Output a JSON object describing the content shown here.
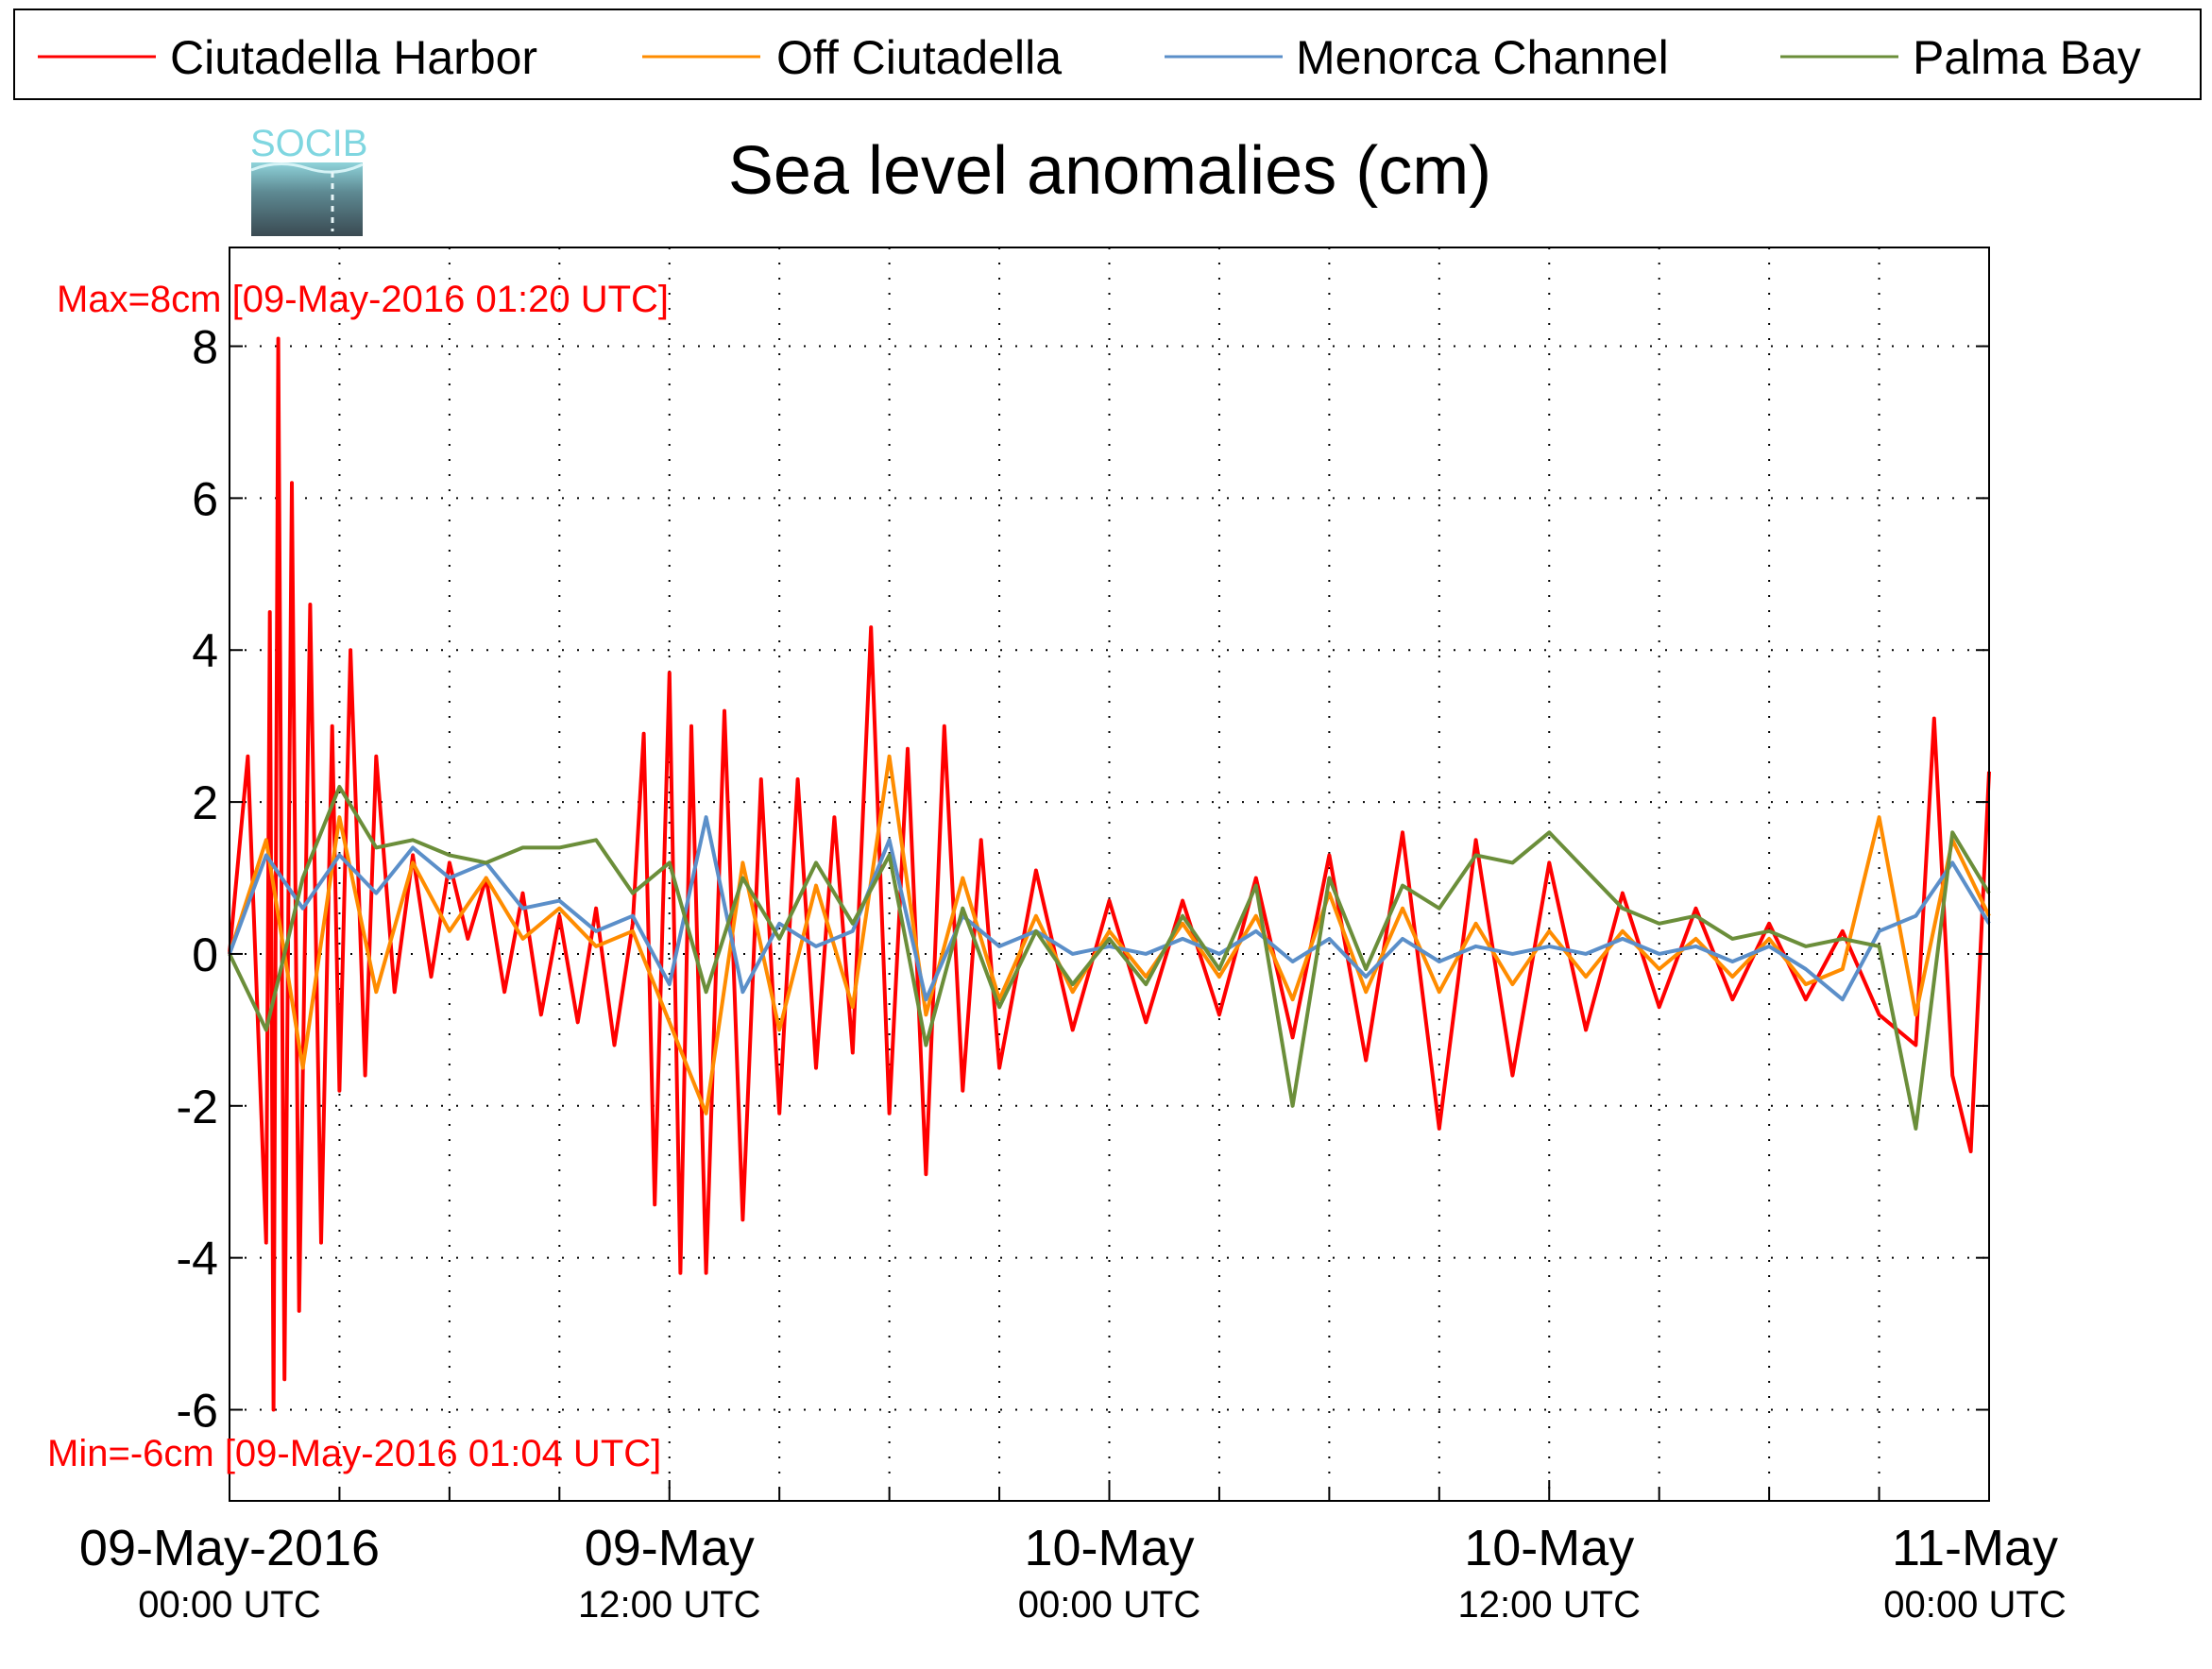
{
  "chart_data": {
    "type": "line",
    "title": "Sea level anomalies (cm)",
    "xlabel": "",
    "ylabel": "",
    "ylim": [
      -7.2,
      9.3
    ],
    "yticks": [
      8,
      6,
      4,
      2,
      0,
      -2,
      -4,
      -6
    ],
    "ytick_labels": [
      "8",
      "6",
      "4",
      "2",
      "0",
      "-2",
      "-4",
      "-6"
    ],
    "x_range_hours": [
      0,
      48
    ],
    "x_ticks": [
      {
        "date": "09-May-2016",
        "time": "00:00 UTC"
      },
      {
        "date": "09-May",
        "time": "12:00 UTC"
      },
      {
        "date": "10-May",
        "time": "00:00 UTC"
      },
      {
        "date": "10-May",
        "time": "12:00 UTC"
      },
      {
        "date": "11-May",
        "time": "00:00 UTC"
      }
    ],
    "grid": true,
    "legend_position": "top",
    "annotations": {
      "max": "Max=8cm [09-May-2016 01:20 UTC]",
      "min": "Min=-6cm [09-May-2016 01:04 UTC]"
    },
    "series": [
      {
        "name": "Ciutadella Harbor",
        "color": "#ff0000",
        "x": [
          0,
          0.5,
          1,
          1.1,
          1.2,
          1.33,
          1.5,
          1.7,
          1.9,
          2.2,
          2.5,
          2.8,
          3,
          3.3,
          3.7,
          4,
          4.5,
          5,
          5.5,
          6,
          6.5,
          7,
          7.5,
          8,
          8.5,
          9,
          9.5,
          10,
          10.5,
          11,
          11.3,
          11.6,
          12,
          12.3,
          12.6,
          13,
          13.5,
          14,
          14.5,
          15,
          15.5,
          16,
          16.5,
          17,
          17.5,
          18,
          18.5,
          19,
          19.5,
          20,
          20.5,
          21,
          22,
          23,
          24,
          25,
          26,
          27,
          28,
          29,
          30,
          31,
          32,
          33,
          34,
          35,
          36,
          37,
          38,
          39,
          40,
          41,
          42,
          43,
          44,
          45,
          46,
          46.5,
          47,
          47.5,
          48
        ],
        "y": [
          0,
          2.6,
          -3.8,
          4.5,
          -6,
          8.1,
          -5.6,
          6.2,
          -4.7,
          4.6,
          -3.8,
          3,
          -1.8,
          4,
          -1.6,
          2.6,
          -0.5,
          1.3,
          -0.3,
          1.2,
          0.2,
          1,
          -0.5,
          0.8,
          -0.8,
          0.5,
          -0.9,
          0.6,
          -1.2,
          0.4,
          2.9,
          -3.3,
          3.7,
          -4.2,
          3,
          -4.2,
          3.2,
          -3.5,
          2.3,
          -2.1,
          2.3,
          -1.5,
          1.8,
          -1.3,
          4.3,
          -2.1,
          2.7,
          -2.9,
          3,
          -1.8,
          1.5,
          -1.5,
          1.1,
          -1,
          0.7,
          -0.9,
          0.7,
          -0.8,
          1,
          -1.1,
          1.3,
          -1.4,
          1.6,
          -2.3,
          1.5,
          -1.6,
          1.2,
          -1,
          0.8,
          -0.7,
          0.6,
          -0.6,
          0.4,
          -0.6,
          0.3,
          -0.8,
          -1.2,
          3.1,
          -1.6,
          -2.6,
          2.4
        ]
      },
      {
        "name": "Off Ciutadella",
        "color": "#ff8c00",
        "x": [
          0,
          1,
          2,
          3,
          4,
          5,
          6,
          7,
          8,
          9,
          10,
          11,
          12,
          13,
          14,
          15,
          16,
          17,
          18,
          19,
          20,
          21,
          22,
          23,
          24,
          25,
          26,
          27,
          28,
          29,
          30,
          31,
          32,
          33,
          34,
          35,
          36,
          37,
          38,
          39,
          40,
          41,
          42,
          43,
          44,
          45,
          46,
          47,
          48
        ],
        "y": [
          0,
          1.5,
          -1.5,
          1.8,
          -0.5,
          1.2,
          0.3,
          1,
          0.2,
          0.6,
          0.1,
          0.3,
          -0.9,
          -2.1,
          1.2,
          -1,
          0.9,
          -0.7,
          2.6,
          -0.8,
          1,
          -0.6,
          0.5,
          -0.5,
          0.3,
          -0.3,
          0.4,
          -0.3,
          0.5,
          -0.6,
          0.8,
          -0.5,
          0.6,
          -0.5,
          0.4,
          -0.4,
          0.3,
          -0.3,
          0.3,
          -0.2,
          0.2,
          -0.3,
          0.2,
          -0.4,
          -0.2,
          1.8,
          -0.8,
          1.5,
          0.5
        ]
      },
      {
        "name": "Menorca Channel",
        "color": "#5b8fc9",
        "x": [
          0,
          1,
          2,
          3,
          4,
          5,
          6,
          7,
          8,
          9,
          10,
          11,
          12,
          13,
          14,
          15,
          16,
          17,
          18,
          19,
          20,
          21,
          22,
          23,
          24,
          25,
          26,
          27,
          28,
          29,
          30,
          31,
          32,
          33,
          34,
          35,
          36,
          37,
          38,
          39,
          40,
          41,
          42,
          43,
          44,
          45,
          46,
          47,
          48
        ],
        "y": [
          0,
          1.3,
          0.6,
          1.3,
          0.8,
          1.4,
          1,
          1.2,
          0.6,
          0.7,
          0.3,
          0.5,
          -0.4,
          1.8,
          -0.5,
          0.4,
          0.1,
          0.3,
          1.5,
          -0.6,
          0.5,
          0.1,
          0.3,
          0,
          0.1,
          0,
          0.2,
          0,
          0.3,
          -0.1,
          0.2,
          -0.3,
          0.2,
          -0.1,
          0.1,
          0,
          0.1,
          0,
          0.2,
          0,
          0.1,
          -0.1,
          0.1,
          -0.2,
          -0.6,
          0.3,
          0.5,
          1.2,
          0.4
        ]
      },
      {
        "name": "Palma Bay",
        "color": "#6b8e3a",
        "x": [
          0,
          1,
          2,
          3,
          4,
          5,
          6,
          7,
          8,
          9,
          10,
          11,
          12,
          13,
          14,
          15,
          16,
          17,
          18,
          19,
          20,
          21,
          22,
          23,
          24,
          25,
          26,
          27,
          28,
          29,
          30,
          31,
          32,
          33,
          34,
          35,
          36,
          37,
          38,
          39,
          40,
          41,
          42,
          43,
          44,
          45,
          46,
          47,
          48
        ],
        "y": [
          0,
          -1,
          1,
          2.2,
          1.4,
          1.5,
          1.3,
          1.2,
          1.4,
          1.4,
          1.5,
          0.8,
          1.2,
          -0.5,
          1,
          0.2,
          1.2,
          0.4,
          1.3,
          -1.2,
          0.6,
          -0.7,
          0.3,
          -0.4,
          0.2,
          -0.4,
          0.5,
          -0.2,
          0.9,
          -2,
          1,
          -0.2,
          0.9,
          0.6,
          1.3,
          1.2,
          1.6,
          1.1,
          0.6,
          0.4,
          0.5,
          0.2,
          0.3,
          0.1,
          0.2,
          0.1,
          -2.3,
          1.6,
          0.8
        ]
      }
    ]
  },
  "logo": {
    "text": "SOCIB"
  }
}
